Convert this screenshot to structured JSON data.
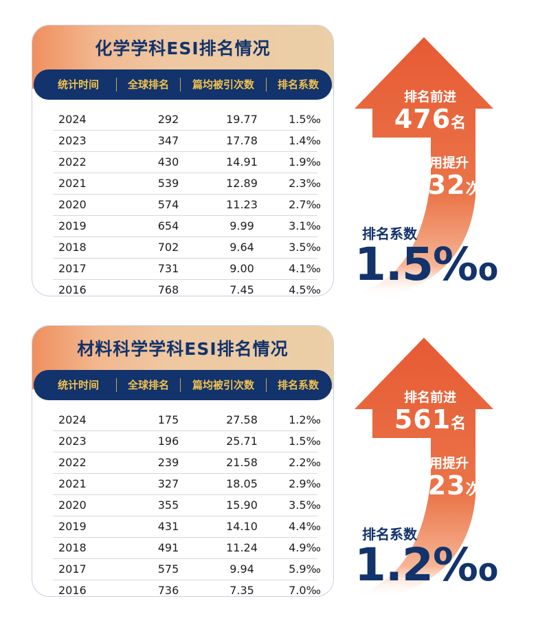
{
  "colors": {
    "navy": "#12336b",
    "gold": "#f3c24e",
    "orange": "#e8603a"
  },
  "headers": [
    "统计时间",
    "全球排名",
    "篇均被引次数",
    "排名系数"
  ],
  "panels": [
    {
      "title": "化学学科ESI排名情况",
      "rows": [
        [
          "2024",
          "292",
          "19.77",
          "1.5‰"
        ],
        [
          "2023",
          "347",
          "17.78",
          "1.4‰"
        ],
        [
          "2022",
          "430",
          "14.91",
          "1.9‰"
        ],
        [
          "2021",
          "539",
          "12.89",
          "2.3‰"
        ],
        [
          "2020",
          "574",
          "11.23",
          "2.7‰"
        ],
        [
          "2019",
          "654",
          "9.99",
          "3.1‰"
        ],
        [
          "2018",
          "702",
          "9.64",
          "3.5‰"
        ],
        [
          "2017",
          "731",
          "9.00",
          "4.1‰"
        ],
        [
          "2016",
          "768",
          "7.45",
          "4.5‰"
        ]
      ],
      "rank_label": "排名前进",
      "rank_value": "476",
      "rank_unit": "名",
      "cite_label": "篇均引用提升",
      "cite_value": "12.32",
      "cite_unit": "次",
      "coef_label": "排名系数",
      "coef_value": "1.5‰"
    },
    {
      "title": "材料科学学科ESI排名情况",
      "rows": [
        [
          "2024",
          "175",
          "27.58",
          "1.2‰"
        ],
        [
          "2023",
          "196",
          "25.71",
          "1.5‰"
        ],
        [
          "2022",
          "239",
          "21.58",
          "2.2‰"
        ],
        [
          "2021",
          "327",
          "18.05",
          "2.9‰"
        ],
        [
          "2020",
          "355",
          "15.90",
          "3.5‰"
        ],
        [
          "2019",
          "431",
          "14.10",
          "4.4‰"
        ],
        [
          "2018",
          "491",
          "11.24",
          "4.9‰"
        ],
        [
          "2017",
          "575",
          "9.94",
          "5.9‰"
        ],
        [
          "2016",
          "736",
          "7.35",
          "7.0‰"
        ]
      ],
      "rank_label": "排名前进",
      "rank_value": "561",
      "rank_unit": "名",
      "cite_label": "篇均引用提升",
      "cite_value": "20.23",
      "cite_unit": "次",
      "coef_label": "排名系数",
      "coef_value": "1.2‰"
    }
  ]
}
